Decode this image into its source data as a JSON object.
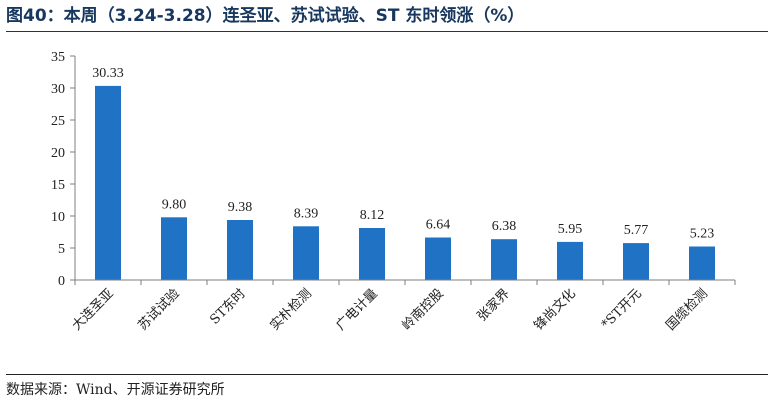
{
  "figure": {
    "title": "图40：本周（3.24-3.28）连圣亚、苏试试验、ST 东时领涨（%）",
    "source": "数据来源：Wind、开源证券研究所"
  },
  "colors": {
    "bar": "#1f72c4",
    "axis": "#7f7f7f",
    "title": "#17375e",
    "text": "#222222"
  },
  "chart_data": {
    "type": "bar",
    "title": "本周（3.24-3.28）连圣亚、苏试试验、ST 东时领涨（%）",
    "xlabel": "",
    "ylabel": "",
    "ylim": [
      0,
      35
    ],
    "yticks": [
      0,
      5,
      10,
      15,
      20,
      25,
      30,
      35
    ],
    "grid": false,
    "categories": [
      "大连圣亚",
      "苏试试验",
      "ST东时",
      "实朴检测",
      "广电计量",
      "岭南控股",
      "张家界",
      "锋尚文化",
      "*ST开元",
      "国缆检测"
    ],
    "values": [
      30.33,
      9.8,
      9.38,
      8.39,
      8.12,
      6.64,
      6.38,
      5.95,
      5.77,
      5.23
    ],
    "value_labels": [
      "30.33",
      "9.80",
      "9.38",
      "8.39",
      "8.12",
      "6.64",
      "6.38",
      "5.95",
      "5.77",
      "5.23"
    ]
  }
}
